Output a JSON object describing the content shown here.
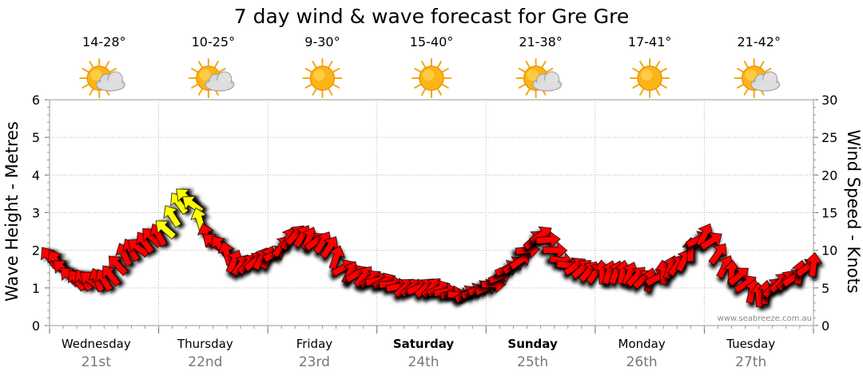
{
  "chart_data": {
    "type": "line",
    "title": "7 day wind & wave forecast for Gre Gre",
    "ylabel_left": "Wave Height - Metres",
    "ylabel_right": "Wind Speed - Knots",
    "yticks_left": [
      "0",
      "1",
      "2",
      "3",
      "4",
      "5",
      "6"
    ],
    "yticks_right": [
      "0",
      "5",
      "10",
      "15",
      "20",
      "25",
      "30"
    ],
    "ylim_left": [
      0,
      6
    ],
    "ylim_right": [
      0,
      30
    ],
    "grid": true,
    "credit": "www.seabreeze.com.au",
    "days": [
      {
        "name": "Wednesday",
        "date": "21st",
        "temp": "14-28°",
        "weather": "partly-cloudy",
        "bold": false
      },
      {
        "name": "Thursday",
        "date": "22nd",
        "temp": "10-25°",
        "weather": "partly-cloudy",
        "bold": false
      },
      {
        "name": "Friday",
        "date": "23rd",
        "temp": "9-30°",
        "weather": "sunny",
        "bold": false
      },
      {
        "name": "Saturday",
        "date": "24th",
        "temp": "15-40°",
        "weather": "sunny",
        "bold": true
      },
      {
        "name": "Sunday",
        "date": "25th",
        "temp": "21-38°",
        "weather": "partly-cloudy",
        "bold": true
      },
      {
        "name": "Monday",
        "date": "26th",
        "temp": "17-41°",
        "weather": "sunny",
        "bold": false
      },
      {
        "name": "Tuesday",
        "date": "27th",
        "temp": "21-42°",
        "weather": "partly-cloudy",
        "bold": false
      }
    ],
    "series": {
      "x_hours": [
        0,
        6,
        12,
        18,
        24,
        30,
        36,
        42,
        48,
        54,
        60,
        66,
        72,
        78,
        84,
        90,
        96,
        102,
        108,
        114,
        120,
        126,
        132,
        138,
        144,
        150,
        156,
        162,
        168
      ],
      "wind_knots": [
        9,
        6,
        6,
        10,
        12,
        17,
        11,
        8,
        9,
        12,
        11,
        7,
        6,
        5,
        5,
        4,
        5,
        8,
        12,
        8,
        7,
        7,
        6,
        8,
        12,
        7,
        4,
        6,
        8
      ],
      "colors": {
        "low": "#ff0000",
        "high": "#ffff00"
      },
      "high_threshold_knots": 12.5
    }
  }
}
